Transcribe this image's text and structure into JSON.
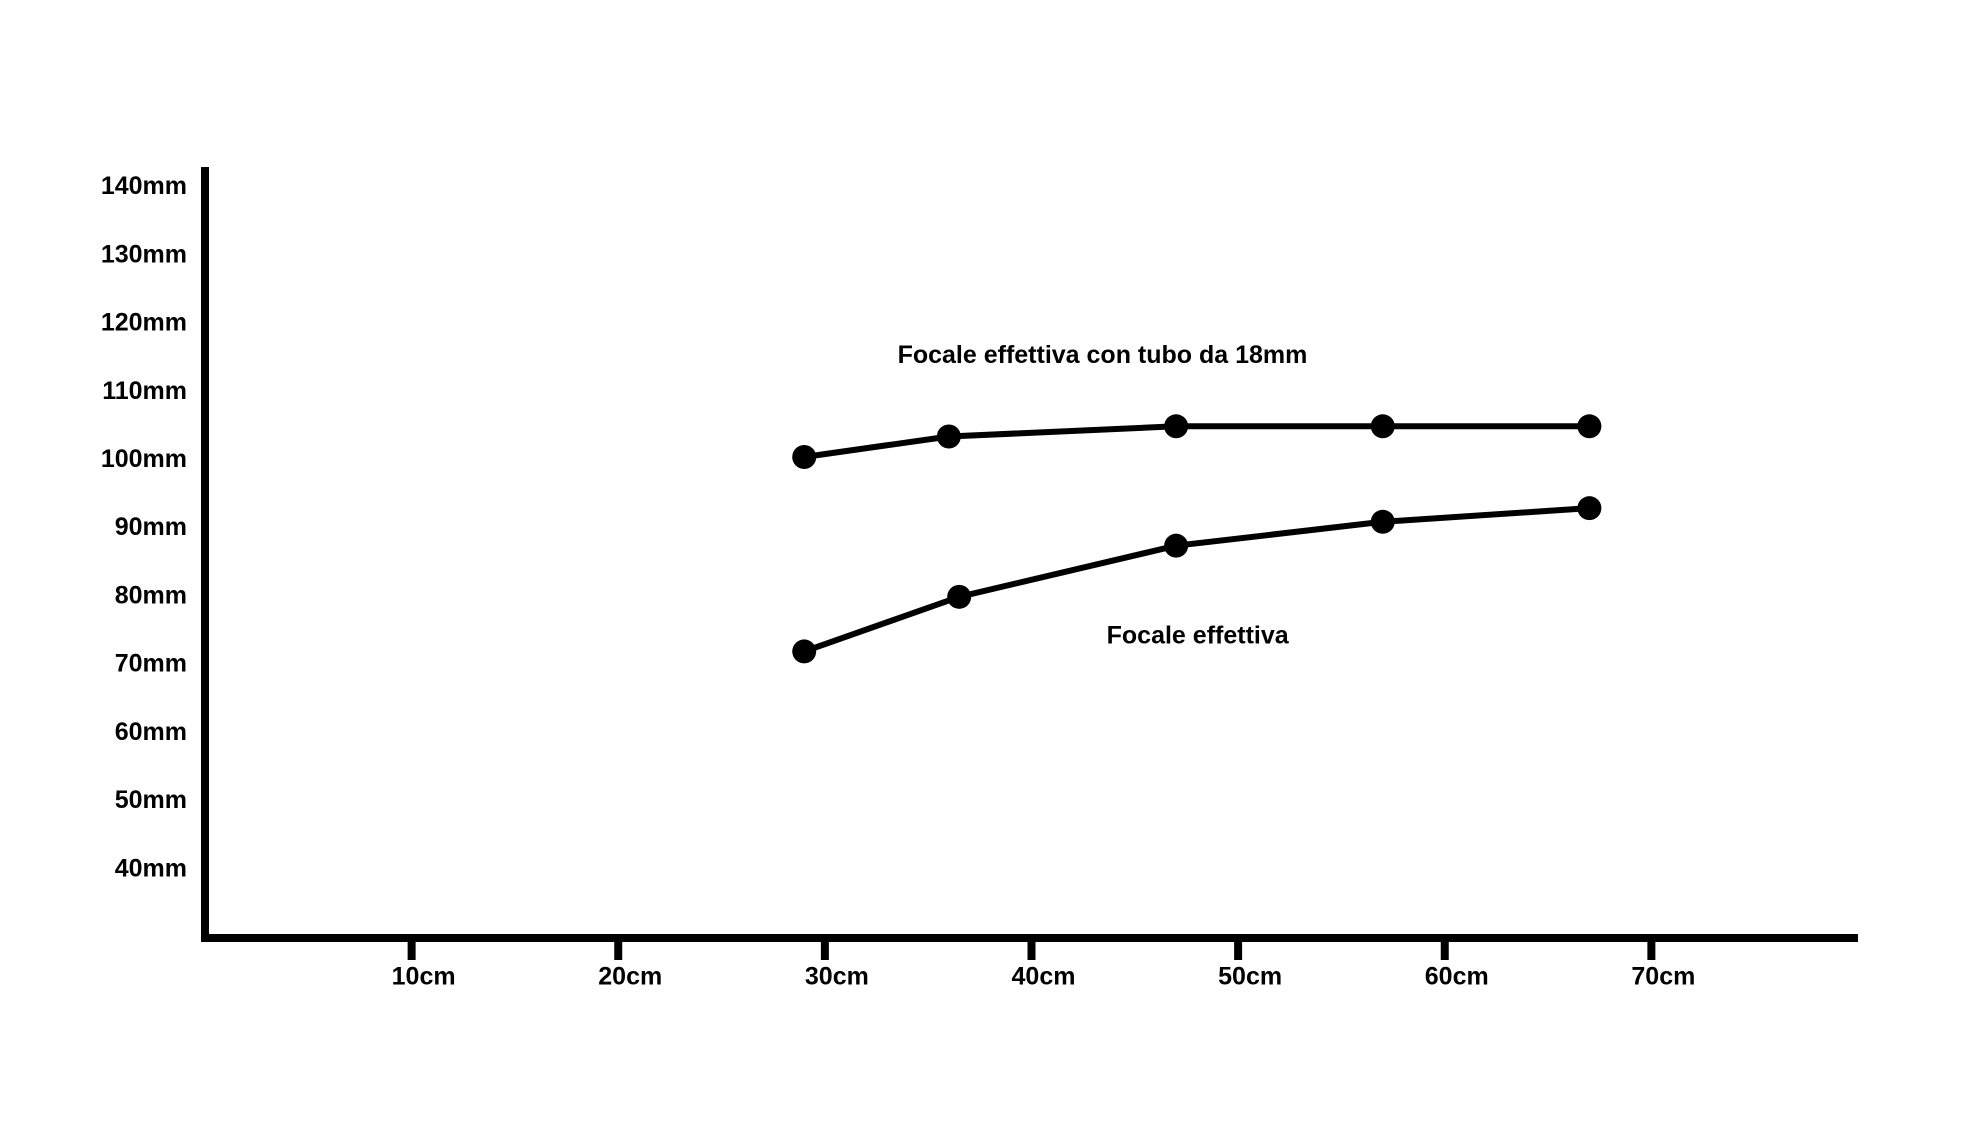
{
  "chart_data": {
    "type": "line",
    "series": [
      {
        "name": "Focale effettiva con tubo da 18mm",
        "color": "#000000",
        "x": [
          29,
          36,
          47,
          57,
          67
        ],
        "values": [
          100.5,
          103.5,
          105,
          105,
          105
        ]
      },
      {
        "name": "Focale effettiva",
        "color": "#000000",
        "x": [
          29,
          36.5,
          47,
          57,
          67
        ],
        "values": [
          72,
          80,
          87.5,
          91,
          93
        ]
      }
    ],
    "xlim": [
      0,
      80
    ],
    "xticks": [
      {
        "value": 10,
        "label": "10cm"
      },
      {
        "value": 20,
        "label": "20cm"
      },
      {
        "value": 30,
        "label": "30cm"
      },
      {
        "value": 40,
        "label": "40cm"
      },
      {
        "value": 50,
        "label": "50cm"
      },
      {
        "value": 60,
        "label": "60cm"
      },
      {
        "value": 70,
        "label": "70cm"
      }
    ],
    "ylim": [
      30,
      143
    ],
    "yticks": [
      {
        "value": 40,
        "label": "40mm"
      },
      {
        "value": 50,
        "label": "50mm"
      },
      {
        "value": 60,
        "label": "60mm"
      },
      {
        "value": 70,
        "label": "70mm"
      },
      {
        "value": 80,
        "label": "80mm"
      },
      {
        "value": 90,
        "label": "90mm"
      },
      {
        "value": 100,
        "label": "100mm"
      },
      {
        "value": 110,
        "label": "110mm"
      },
      {
        "value": 120,
        "label": "120mm"
      },
      {
        "value": 130,
        "label": "130mm"
      },
      {
        "value": 140,
        "label": "140mm"
      }
    ],
    "grid": false
  }
}
